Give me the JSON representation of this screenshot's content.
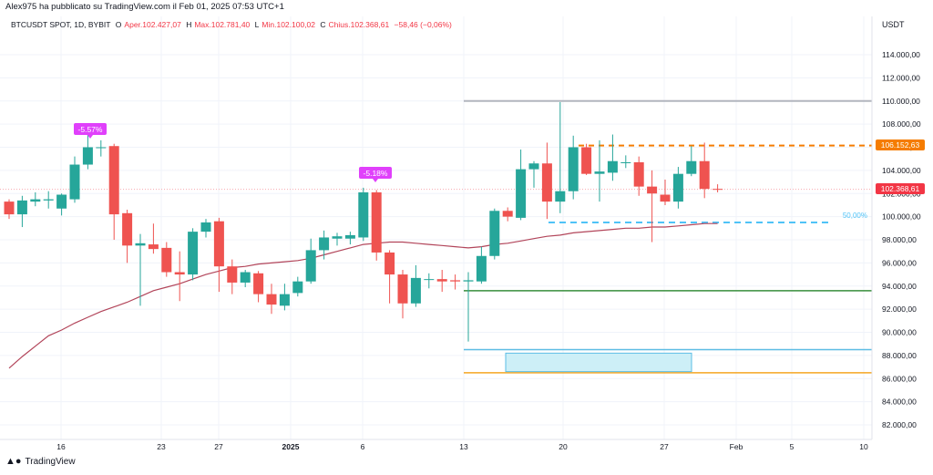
{
  "header": {
    "published": "Alex975 ha pubblicato su TradingView.com il Feb 01, 2025 07:53 UTC+1",
    "symbol": "BTCUSDT SPOT, 1D, BYBIT",
    "open_label": "O",
    "open_text": "Aper.102.427,07",
    "high_label": "H",
    "high_text": "Max.102.781,40",
    "low_label": "L",
    "low_text": "Min.102.100,02",
    "close_label": "C",
    "close_text": "Chius.102.368,61",
    "change_text": "−58,46 (−0,06%)"
  },
  "axis": {
    "unit": "USDT",
    "price_ticks": [
      "114.000,00",
      "112.000,00",
      "110.000,00",
      "108.000,00",
      "106.000,00",
      "104.000,00",
      "102.000,00",
      "100.000,00",
      "98.000,00",
      "96.000,00",
      "94.000,00",
      "92.000,00",
      "90.000,00",
      "88.000,00",
      "86.000,00",
      "84.000,00",
      "82.000,00"
    ],
    "time_ticks": [
      "16",
      "23",
      "27",
      "2025",
      "6",
      "13",
      "20",
      "27",
      "Feb",
      "5",
      "10"
    ]
  },
  "badges": {
    "price_orange": "106.152,63",
    "price_last": "102.368,61",
    "fib_label": "50,00%",
    "drop1": "-5.57%",
    "drop2": "-5.18%"
  },
  "colors": {
    "up": "#26a69a",
    "down": "#ef5350",
    "ma": "#b2455a",
    "orange": "#f57c00",
    "green_line": "#388e3c",
    "blue_line": "#5bbce4",
    "yellow_line": "#f5a623",
    "gray_line": "#b2b5be",
    "badge_magenta": "#e040fb",
    "fib_cyan": "#4fc3f7"
  },
  "footer": {
    "brand": "TradingView",
    "brand_icon": "tv-logo-icon"
  },
  "chart_data": {
    "type": "candlestick",
    "title": "BTCUSDT SPOT, 1D, BYBIT",
    "ylim": [
      81000,
      116000
    ],
    "candles": [
      {
        "t": 0,
        "o": 101300,
        "h": 101500,
        "l": 99800,
        "c": 100200
      },
      {
        "t": 1,
        "o": 100200,
        "h": 101800,
        "l": 99100,
        "c": 101400
      },
      {
        "t": 2,
        "o": 101300,
        "h": 102100,
        "l": 100900,
        "c": 101500
      },
      {
        "t": 3,
        "o": 101400,
        "h": 102200,
        "l": 100700,
        "c": 101500
      },
      {
        "t": 4,
        "o": 100700,
        "h": 102000,
        "l": 100100,
        "c": 101900
      },
      {
        "t": 5,
        "o": 101500,
        "h": 105200,
        "l": 101200,
        "c": 104500
      },
      {
        "t": 6,
        "o": 104500,
        "h": 107400,
        "l": 104100,
        "c": 106000
      },
      {
        "t": 7,
        "o": 106000,
        "h": 106600,
        "l": 105200,
        "c": 106000
      },
      {
        "t": 8,
        "o": 106100,
        "h": 106300,
        "l": 98000,
        "c": 100200
      },
      {
        "t": 9,
        "o": 100300,
        "h": 100600,
        "l": 96000,
        "c": 97500
      },
      {
        "t": 10,
        "o": 97500,
        "h": 98500,
        "l": 92300,
        "c": 97700
      },
      {
        "t": 11,
        "o": 97600,
        "h": 99400,
        "l": 96800,
        "c": 97200
      },
      {
        "t": 12,
        "o": 97300,
        "h": 97800,
        "l": 94800,
        "c": 95200
      },
      {
        "t": 13,
        "o": 95200,
        "h": 97000,
        "l": 92700,
        "c": 95000
      },
      {
        "t": 14,
        "o": 95000,
        "h": 99000,
        "l": 94500,
        "c": 98700
      },
      {
        "t": 15,
        "o": 98700,
        "h": 99800,
        "l": 98200,
        "c": 99500
      },
      {
        "t": 16,
        "o": 99600,
        "h": 99900,
        "l": 93500,
        "c": 95700
      },
      {
        "t": 17,
        "o": 95700,
        "h": 96300,
        "l": 93300,
        "c": 94300
      },
      {
        "t": 18,
        "o": 94300,
        "h": 95400,
        "l": 93900,
        "c": 95200
      },
      {
        "t": 19,
        "o": 95100,
        "h": 95300,
        "l": 92600,
        "c": 93300
      },
      {
        "t": 20,
        "o": 93300,
        "h": 94200,
        "l": 91600,
        "c": 92400
      },
      {
        "t": 21,
        "o": 92300,
        "h": 94200,
        "l": 91900,
        "c": 93300
      },
      {
        "t": 22,
        "o": 93400,
        "h": 94800,
        "l": 93100,
        "c": 94400
      },
      {
        "t": 23,
        "o": 94400,
        "h": 98100,
        "l": 94200,
        "c": 97100
      },
      {
        "t": 24,
        "o": 97100,
        "h": 98800,
        "l": 96300,
        "c": 98200
      },
      {
        "t": 25,
        "o": 98100,
        "h": 98600,
        "l": 97500,
        "c": 98300
      },
      {
        "t": 26,
        "o": 98100,
        "h": 98700,
        "l": 97600,
        "c": 98400
      },
      {
        "t": 27,
        "o": 98200,
        "h": 102500,
        "l": 97900,
        "c": 102100
      },
      {
        "t": 28,
        "o": 102100,
        "h": 102300,
        "l": 96200,
        "c": 96900
      },
      {
        "t": 29,
        "o": 96900,
        "h": 97100,
        "l": 92500,
        "c": 95000
      },
      {
        "t": 30,
        "o": 95000,
        "h": 95400,
        "l": 91200,
        "c": 92500
      },
      {
        "t": 31,
        "o": 92500,
        "h": 95800,
        "l": 92200,
        "c": 94700
      },
      {
        "t": 32,
        "o": 94600,
        "h": 95100,
        "l": 93800,
        "c": 94600
      },
      {
        "t": 33,
        "o": 94600,
        "h": 95400,
        "l": 93500,
        "c": 94400
      },
      {
        "t": 34,
        "o": 94500,
        "h": 95000,
        "l": 93700,
        "c": 94400
      },
      {
        "t": 35,
        "o": 94400,
        "h": 95200,
        "l": 89200,
        "c": 94500
      },
      {
        "t": 36,
        "o": 94400,
        "h": 97400,
        "l": 94200,
        "c": 96600
      },
      {
        "t": 37,
        "o": 96600,
        "h": 100700,
        "l": 96300,
        "c": 100500
      },
      {
        "t": 38,
        "o": 100500,
        "h": 100800,
        "l": 99600,
        "c": 100000
      },
      {
        "t": 39,
        "o": 99900,
        "h": 105800,
        "l": 99700,
        "c": 104100
      },
      {
        "t": 40,
        "o": 104100,
        "h": 104800,
        "l": 102500,
        "c": 104600
      },
      {
        "t": 41,
        "o": 104600,
        "h": 106400,
        "l": 99800,
        "c": 101300
      },
      {
        "t": 42,
        "o": 101300,
        "h": 109900,
        "l": 100300,
        "c": 102200
      },
      {
        "t": 43,
        "o": 102200,
        "h": 107000,
        "l": 101500,
        "c": 106000
      },
      {
        "t": 44,
        "o": 106000,
        "h": 106300,
        "l": 103600,
        "c": 103700
      },
      {
        "t": 45,
        "o": 103700,
        "h": 106600,
        "l": 101300,
        "c": 103900
      },
      {
        "t": 46,
        "o": 103800,
        "h": 107100,
        "l": 103100,
        "c": 104800
      },
      {
        "t": 47,
        "o": 104700,
        "h": 105300,
        "l": 104200,
        "c": 104700
      },
      {
        "t": 48,
        "o": 104700,
        "h": 105200,
        "l": 101800,
        "c": 102600
      },
      {
        "t": 49,
        "o": 102600,
        "h": 104000,
        "l": 97800,
        "c": 102000
      },
      {
        "t": 50,
        "o": 101900,
        "h": 103200,
        "l": 101000,
        "c": 101300
      },
      {
        "t": 51,
        "o": 101300,
        "h": 104300,
        "l": 100700,
        "c": 103700
      },
      {
        "t": 52,
        "o": 103700,
        "h": 106100,
        "l": 103500,
        "c": 104800
      },
      {
        "t": 53,
        "o": 104800,
        "h": 106400,
        "l": 101600,
        "c": 102400
      },
      {
        "t": 54,
        "o": 102400,
        "h": 102800,
        "l": 102100,
        "c": 102370
      }
    ],
    "ma": [
      86900,
      87900,
      88800,
      89700,
      90200,
      90800,
      91300,
      91800,
      92200,
      92600,
      93100,
      93600,
      93900,
      94200,
      94600,
      95000,
      95300,
      95600,
      95700,
      95900,
      96000,
      96100,
      96200,
      96400,
      96700,
      97000,
      97300,
      97600,
      97700,
      97800,
      97800,
      97700,
      97600,
      97500,
      97400,
      97300,
      97400,
      97600,
      97700,
      97900,
      98100,
      98300,
      98400,
      98600,
      98700,
      98800,
      98900,
      99000,
      99000,
      99100,
      99100,
      99200,
      99300,
      99400,
      99400
    ],
    "levels": {
      "gray": 110000,
      "orange": 106152.63,
      "last": 102368.61,
      "fib50": 99500,
      "green": 93600,
      "blue": 88500,
      "yellow": 86500,
      "box_top": 88200,
      "box_bottom": 86600
    }
  }
}
